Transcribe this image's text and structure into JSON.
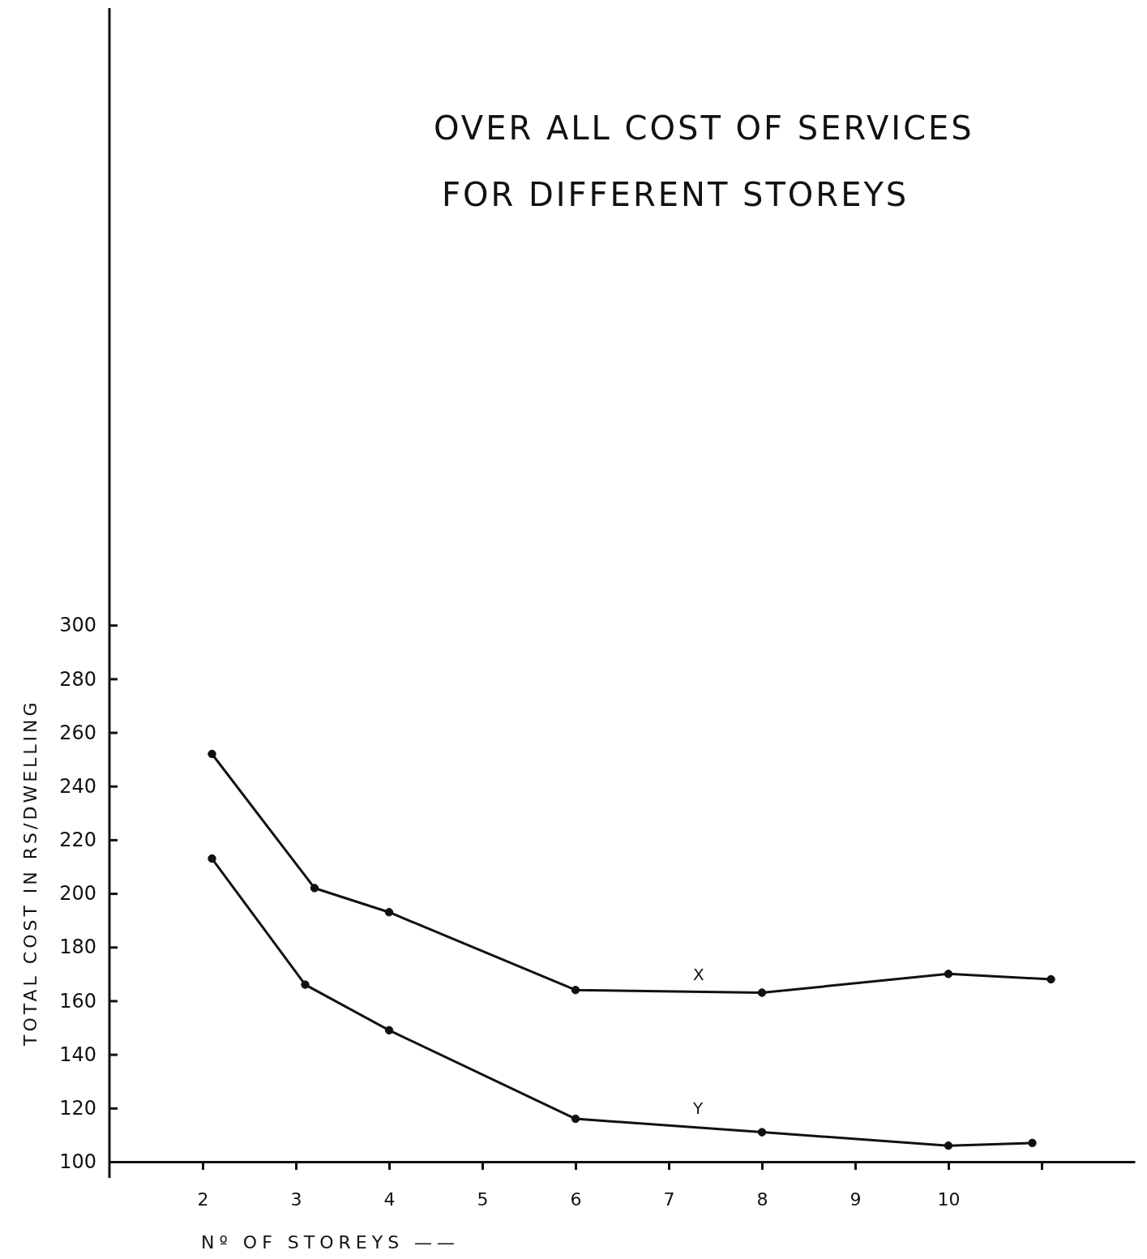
{
  "chart_data": {
    "type": "line",
    "title": "OVER ALL COST OF SERVICES\nFOR DIFFERENT STOREYS",
    "xlabel": "Nº OF STOREYS ——",
    "ylabel": "TOTAL COST IN RS/DWELLING",
    "xlim": [
      1,
      12
    ],
    "xticks": [
      2,
      3,
      4,
      5,
      6,
      7,
      8,
      9,
      10,
      {
        "value": 11,
        "label": null
      }
    ],
    "ylim": [
      100,
      530
    ],
    "yticks": [
      100,
      120,
      140,
      160,
      180,
      200,
      220,
      240,
      260,
      280,
      300
    ],
    "grid": false,
    "legend": false,
    "marker": "circle",
    "line_style": "solid",
    "series": [
      {
        "name": "X",
        "color": "#111111",
        "x": [
          2.1,
          3.2,
          4,
          6,
          8,
          10,
          11.1
        ],
        "values": [
          252,
          202,
          193,
          164,
          163,
          170,
          168
        ]
      },
      {
        "name": "Y",
        "color": "#111111",
        "x": [
          2.1,
          3.1,
          4,
          6,
          8,
          10,
          10.9
        ],
        "values": [
          213,
          166,
          149,
          116,
          111,
          106,
          107
        ]
      }
    ]
  }
}
